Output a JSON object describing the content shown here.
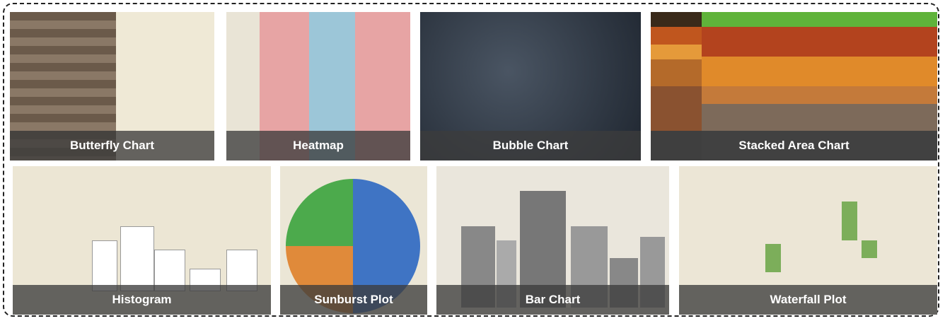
{
  "tiles": [
    {
      "label": "Butterfly Chart"
    },
    {
      "label": "Heatmap"
    },
    {
      "label": "Bubble Chart"
    },
    {
      "label": "Stacked Area Chart"
    },
    {
      "label": "Histogram"
    },
    {
      "label": "Sunburst Plot"
    },
    {
      "label": "Bar Chart"
    },
    {
      "label": "Waterfall Plot"
    }
  ]
}
